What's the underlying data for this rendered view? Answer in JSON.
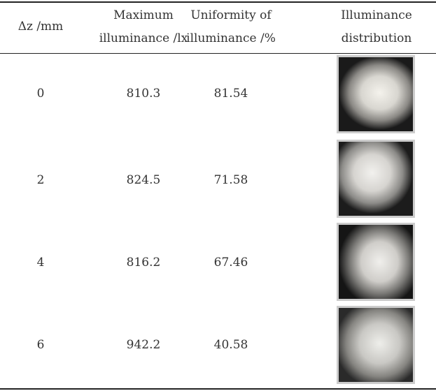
{
  "table": {
    "header": [
      [
        "Δz /mm"
      ],
      [
        "Maximum",
        "illuminance /lx"
      ],
      [
        "Uniformity of",
        "illuminance /%"
      ],
      [
        "Illuminance",
        "distribution"
      ]
    ],
    "rows": [
      [
        0,
        810.3,
        81.54
      ],
      [
        2,
        824.5,
        71.58
      ],
      [
        4,
        816.2,
        67.46
      ],
      [
        6,
        942.2,
        40.58
      ]
    ]
  }
}
